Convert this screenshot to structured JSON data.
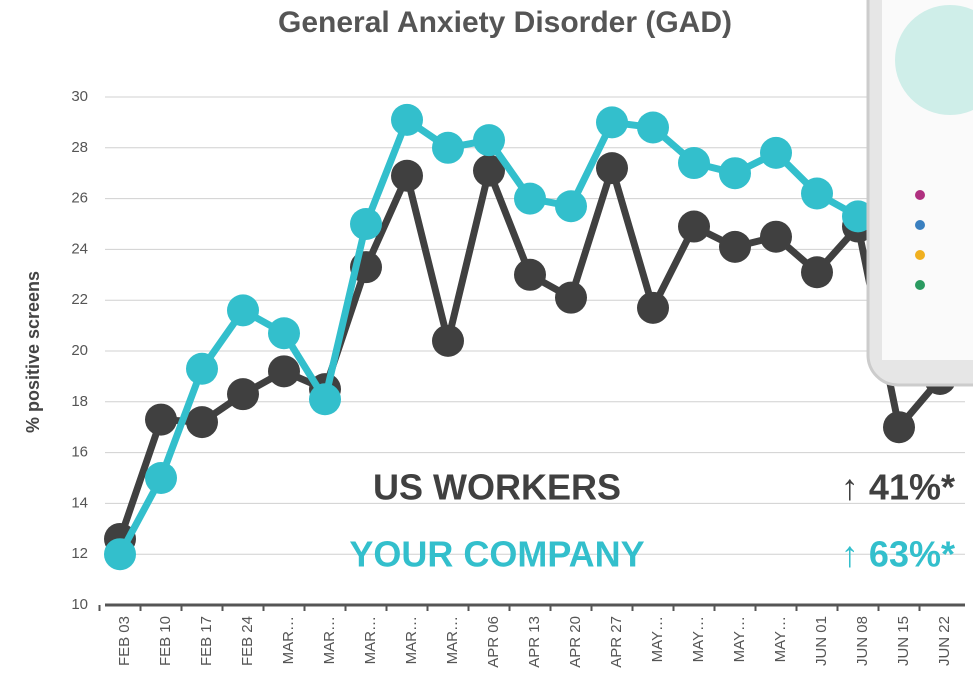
{
  "chart_data": {
    "type": "line",
    "title": "General Anxiety Disorder (GAD)",
    "y_label": "% positive screens",
    "categories": [
      "FEB 03",
      "FEB 10",
      "FEB 17",
      "FEB 24",
      "MAR…",
      "MAR…",
      "MAR…",
      "MAR…",
      "MAR…",
      "APR 06",
      "APR 13",
      "APR 20",
      "APR 27",
      "MAY…",
      "MAY…",
      "MAY…",
      "MAY…",
      "JUN 01",
      "JUN 08",
      "JUN 15",
      "JUN 22"
    ],
    "series": [
      {
        "name": "US WORKERS",
        "color": "#404040",
        "values": [
          12.6,
          17.3,
          17.2,
          18.3,
          19.2,
          18.5,
          23.3,
          26.9,
          20.4,
          27.1,
          23.0,
          22.1,
          27.2,
          21.7,
          24.9,
          24.1,
          24.5,
          23.1,
          24.9,
          17.0,
          18.9
        ],
        "change": "↑ 41%*"
      },
      {
        "name": "YOUR COMPANY",
        "color": "#33bfcc",
        "values": [
          12.0,
          15.0,
          19.3,
          21.6,
          20.7,
          18.1,
          25.0,
          29.1,
          28.0,
          28.3,
          26.0,
          25.7,
          29.0,
          28.8,
          27.4,
          27.0,
          27.8,
          26.2,
          25.3,
          null,
          null
        ],
        "change": "↑ 63%*"
      }
    ],
    "ylim": [
      10,
      30
    ],
    "yticks": [
      10,
      12,
      14,
      16,
      18,
      20,
      22,
      24,
      26,
      28,
      30
    ],
    "grid": true
  }
}
